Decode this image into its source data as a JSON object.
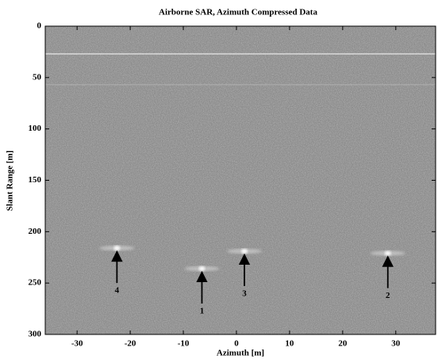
{
  "chart_data": {
    "type": "image",
    "title": "Airborne SAR, Azimuth Compressed Data",
    "xlabel": "Azimuth [m]",
    "ylabel": "Slant Range [m]",
    "xlim": [
      -36,
      37.5
    ],
    "ylim": [
      0,
      300
    ],
    "xticks": [
      -30,
      -20,
      -10,
      0,
      10,
      20,
      30
    ],
    "yticks": [
      0,
      50,
      100,
      150,
      200,
      250,
      300
    ],
    "y_inverted": true,
    "bright_lines": [
      27,
      57
    ],
    "targets": [
      {
        "label": "4",
        "x": -22.5,
        "y": 216
      },
      {
        "label": "1",
        "x": -6.5,
        "y": 236
      },
      {
        "label": "3",
        "x": 1.5,
        "y": 219
      },
      {
        "label": "2",
        "x": 28.5,
        "y": 221
      }
    ]
  }
}
